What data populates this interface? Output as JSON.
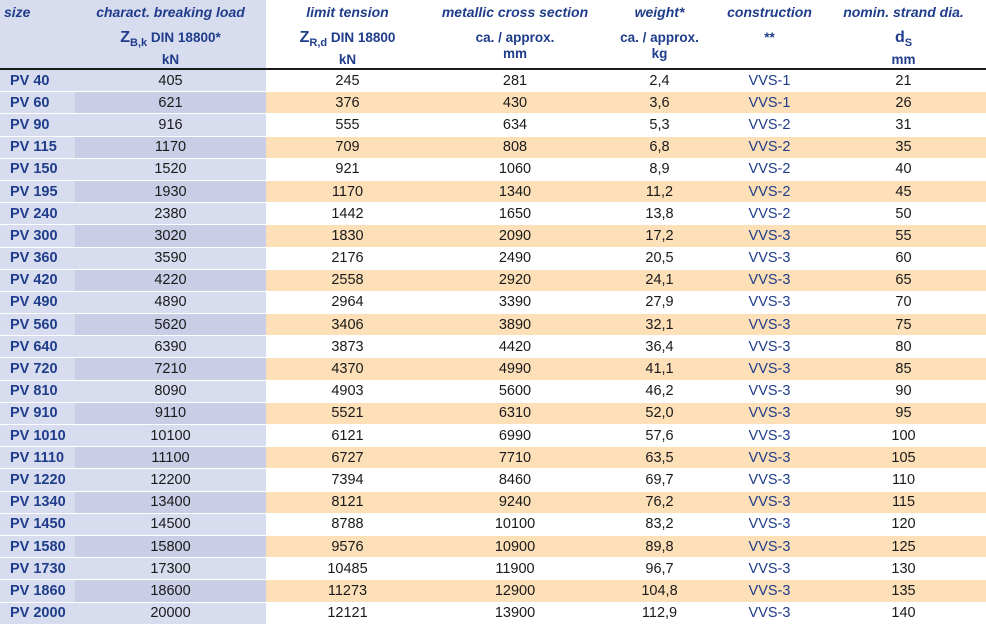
{
  "headers": {
    "size": {
      "title": "size"
    },
    "breaking_load": {
      "title": "charact. breaking load",
      "sym_main": "Z",
      "sym_sub": "B,k",
      "std": " DIN 18800*",
      "unit": "kN"
    },
    "limit_tension": {
      "title": "limit tension",
      "sym_main": "Z",
      "sym_sub": "R,d",
      "std": " DIN 18800",
      "unit": "kN"
    },
    "cross_section": {
      "title": "metallic cross section",
      "sub": "ca. / approx.",
      "unit": "mm"
    },
    "weight": {
      "title": "weight*",
      "sub": "ca. / approx.",
      "unit": "kg"
    },
    "construction": {
      "title": "construction",
      "sub": "**"
    },
    "strand_dia": {
      "title": "nomin. strand dia.",
      "sym_main": "d",
      "sym_sub": "S",
      "unit": "mm"
    }
  },
  "rows": [
    {
      "size": "PV 40",
      "load": "405",
      "tension": "245",
      "cross": "281",
      "weight": "2,4",
      "constr": "VVS-1",
      "dia": "21"
    },
    {
      "size": "PV 60",
      "load": "621",
      "tension": "376",
      "cross": "430",
      "weight": "3,6",
      "constr": "VVS-1",
      "dia": "26"
    },
    {
      "size": "PV 90",
      "load": "916",
      "tension": "555",
      "cross": "634",
      "weight": "5,3",
      "constr": "VVS-2",
      "dia": "31"
    },
    {
      "size": "PV 115",
      "load": "1170",
      "tension": "709",
      "cross": "808",
      "weight": "6,8",
      "constr": "VVS-2",
      "dia": "35"
    },
    {
      "size": "PV 150",
      "load": "1520",
      "tension": "921",
      "cross": "1060",
      "weight": "8,9",
      "constr": "VVS-2",
      "dia": "40"
    },
    {
      "size": "PV 195",
      "load": "1930",
      "tension": "1170",
      "cross": "1340",
      "weight": "11,2",
      "constr": "VVS-2",
      "dia": "45"
    },
    {
      "size": "PV 240",
      "load": "2380",
      "tension": "1442",
      "cross": "1650",
      "weight": "13,8",
      "constr": "VVS-2",
      "dia": "50"
    },
    {
      "size": "PV 300",
      "load": "3020",
      "tension": "1830",
      "cross": "2090",
      "weight": "17,2",
      "constr": "VVS-3",
      "dia": "55"
    },
    {
      "size": "PV 360",
      "load": "3590",
      "tension": "2176",
      "cross": "2490",
      "weight": "20,5",
      "constr": "VVS-3",
      "dia": "60"
    },
    {
      "size": "PV 420",
      "load": "4220",
      "tension": "2558",
      "cross": "2920",
      "weight": "24,1",
      "constr": "VVS-3",
      "dia": "65"
    },
    {
      "size": "PV 490",
      "load": "4890",
      "tension": "2964",
      "cross": "3390",
      "weight": "27,9",
      "constr": "VVS-3",
      "dia": "70"
    },
    {
      "size": "PV 560",
      "load": "5620",
      "tension": "3406",
      "cross": "3890",
      "weight": "32,1",
      "constr": "VVS-3",
      "dia": "75"
    },
    {
      "size": "PV 640",
      "load": "6390",
      "tension": "3873",
      "cross": "4420",
      "weight": "36,4",
      "constr": "VVS-3",
      "dia": "80"
    },
    {
      "size": "PV 720",
      "load": "7210",
      "tension": "4370",
      "cross": "4990",
      "weight": "41,1",
      "constr": "VVS-3",
      "dia": "85"
    },
    {
      "size": "PV 810",
      "load": "8090",
      "tension": "4903",
      "cross": "5600",
      "weight": "46,2",
      "constr": "VVS-3",
      "dia": "90"
    },
    {
      "size": "PV 910",
      "load": "9110",
      "tension": "5521",
      "cross": "6310",
      "weight": "52,0",
      "constr": "VVS-3",
      "dia": "95"
    },
    {
      "size": "PV 1010",
      "load": "10100",
      "tension": "6121",
      "cross": "6990",
      "weight": "57,6",
      "constr": "VVS-3",
      "dia": "100"
    },
    {
      "size": "PV 1110",
      "load": "11100",
      "tension": "6727",
      "cross": "7710",
      "weight": "63,5",
      "constr": "VVS-3",
      "dia": "105"
    },
    {
      "size": "PV 1220",
      "load": "12200",
      "tension": "7394",
      "cross": "8460",
      "weight": "69,7",
      "constr": "VVS-3",
      "dia": "110"
    },
    {
      "size": "PV 1340",
      "load": "13400",
      "tension": "8121",
      "cross": "9240",
      "weight": "76,2",
      "constr": "VVS-3",
      "dia": "115"
    },
    {
      "size": "PV 1450",
      "load": "14500",
      "tension": "8788",
      "cross": "10100",
      "weight": "83,2",
      "constr": "VVS-3",
      "dia": "120"
    },
    {
      "size": "PV 1580",
      "load": "15800",
      "tension": "9576",
      "cross": "10900",
      "weight": "89,8",
      "constr": "VVS-3",
      "dia": "125"
    },
    {
      "size": "PV 1730",
      "load": "17300",
      "tension": "10485",
      "cross": "11900",
      "weight": "96,7",
      "constr": "VVS-3",
      "dia": "130"
    },
    {
      "size": "PV 1860",
      "load": "18600",
      "tension": "11273",
      "cross": "12900",
      "weight": "104,8",
      "constr": "VVS-3",
      "dia": "135"
    },
    {
      "size": "PV 2000",
      "load": "20000",
      "tension": "12121",
      "cross": "13900",
      "weight": "112,9",
      "constr": "VVS-3",
      "dia": "140"
    }
  ],
  "colors": {
    "header_text": "#1f3d8a",
    "lavender": "#d8dcef",
    "peach": "#fddfb8"
  }
}
